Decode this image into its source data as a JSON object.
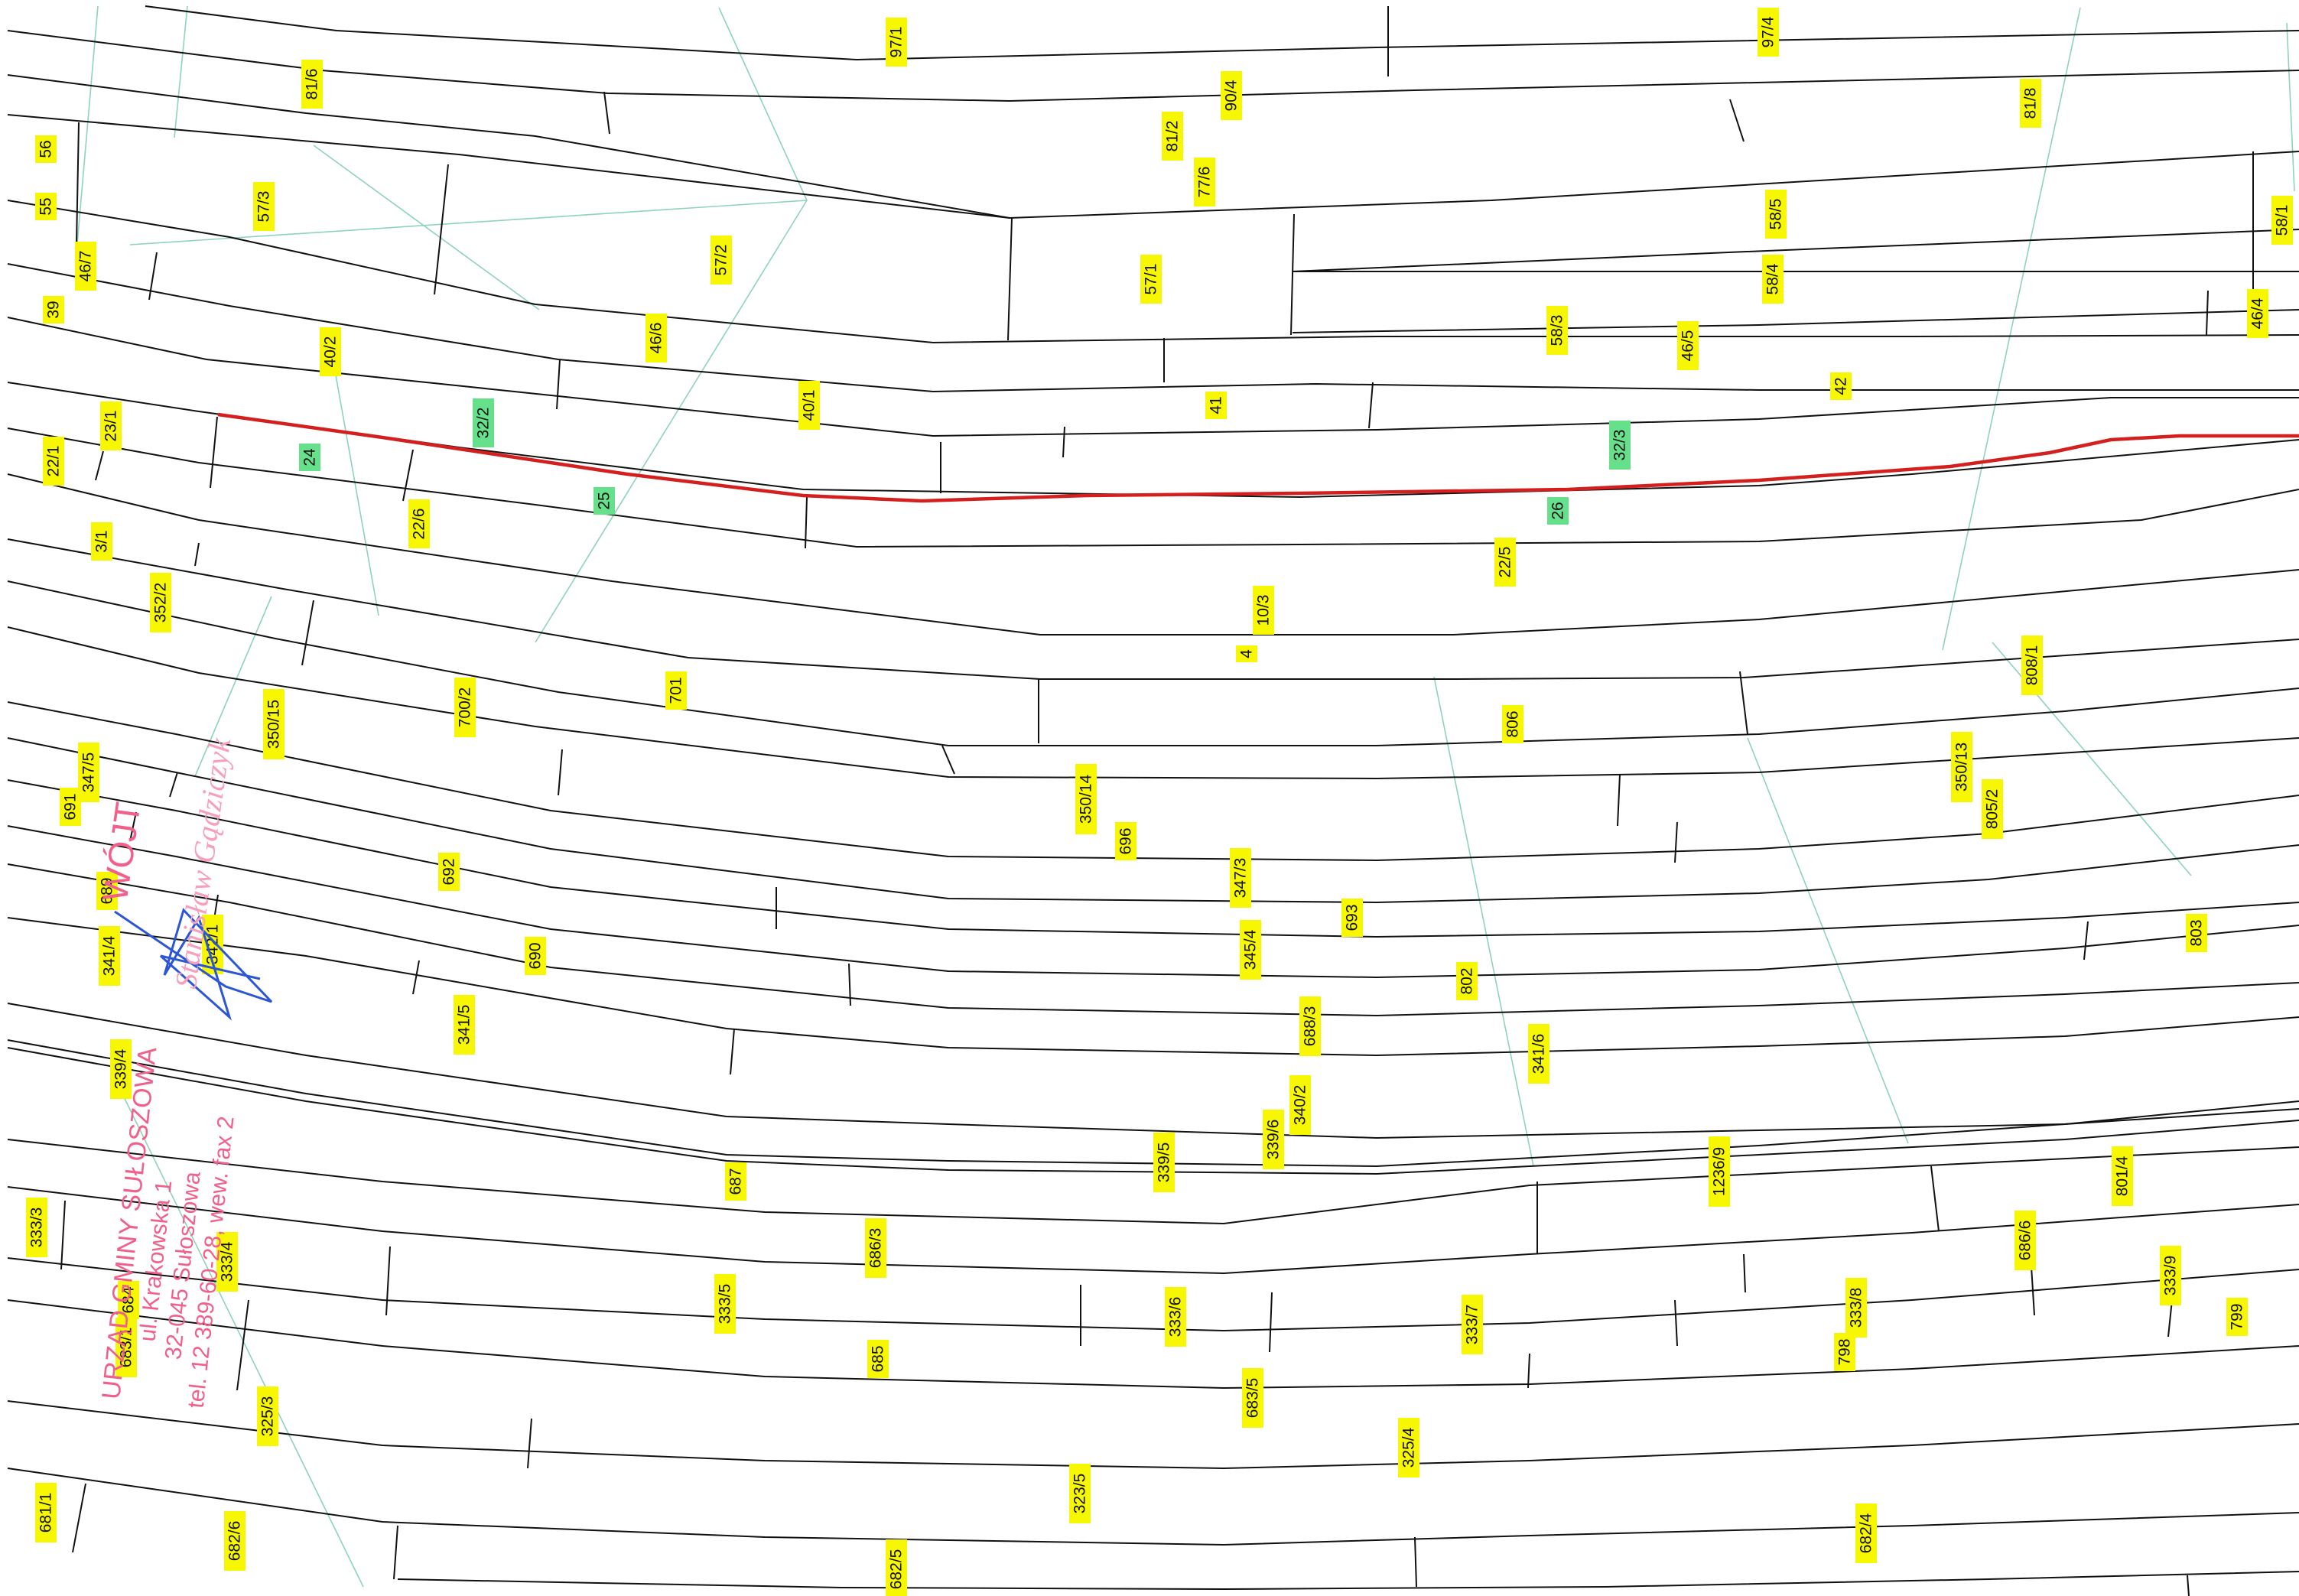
{
  "map": {
    "colors": {
      "background": "#ffffff",
      "boundary": "#111111",
      "label_fill": "#f6f700",
      "highlight_fill": "#66e08a",
      "red_line": "#d41f1f",
      "stamp": "#f0608a",
      "signature": "#2b56d6",
      "thin_lines": "#8fd3b8"
    },
    "parcels": [
      {
        "id": "p1",
        "label": "97/1",
        "highlighted": false
      },
      {
        "id": "p2",
        "label": "97/4",
        "highlighted": false
      },
      {
        "id": "p3",
        "label": "81/6",
        "highlighted": false
      },
      {
        "id": "p4",
        "label": "90/4",
        "highlighted": false
      },
      {
        "id": "p5",
        "label": "81/8",
        "highlighted": false
      },
      {
        "id": "p6",
        "label": "81/2",
        "highlighted": false
      },
      {
        "id": "p7",
        "label": "56",
        "highlighted": false
      },
      {
        "id": "p8",
        "label": "77/6",
        "highlighted": false
      },
      {
        "id": "p9",
        "label": "55",
        "highlighted": false
      },
      {
        "id": "p10",
        "label": "57/3",
        "highlighted": false
      },
      {
        "id": "p11",
        "label": "58/5",
        "highlighted": false
      },
      {
        "id": "p12",
        "label": "58/1",
        "highlighted": false
      },
      {
        "id": "p13",
        "label": "46/7",
        "highlighted": false
      },
      {
        "id": "p14",
        "label": "57/2",
        "highlighted": false
      },
      {
        "id": "p15",
        "label": "57/1",
        "highlighted": false
      },
      {
        "id": "p16",
        "label": "58/4",
        "highlighted": false
      },
      {
        "id": "p17",
        "label": "39",
        "highlighted": false
      },
      {
        "id": "p18",
        "label": "46/6",
        "highlighted": false
      },
      {
        "id": "p19",
        "label": "58/3",
        "highlighted": false
      },
      {
        "id": "p20",
        "label": "46/5",
        "highlighted": false
      },
      {
        "id": "p21",
        "label": "46/4",
        "highlighted": false
      },
      {
        "id": "p22",
        "label": "40/2",
        "highlighted": false
      },
      {
        "id": "p23",
        "label": "40/1",
        "highlighted": false
      },
      {
        "id": "p24",
        "label": "41",
        "highlighted": false
      },
      {
        "id": "p25",
        "label": "42",
        "highlighted": false
      },
      {
        "id": "p26",
        "label": "23/1",
        "highlighted": false
      },
      {
        "id": "p27",
        "label": "32/2",
        "highlighted": true
      },
      {
        "id": "p28",
        "label": "32/3",
        "highlighted": true
      },
      {
        "id": "p29",
        "label": "22/1",
        "highlighted": false
      },
      {
        "id": "p30",
        "label": "24",
        "highlighted": true
      },
      {
        "id": "p31",
        "label": "25",
        "highlighted": true
      },
      {
        "id": "p32",
        "label": "26",
        "highlighted": true
      },
      {
        "id": "p33",
        "label": "22/6",
        "highlighted": false
      },
      {
        "id": "p34",
        "label": "3/1",
        "highlighted": false
      },
      {
        "id": "p35",
        "label": "22/5",
        "highlighted": false
      },
      {
        "id": "p36",
        "label": "352/2",
        "highlighted": false
      },
      {
        "id": "p37",
        "label": "10/3",
        "highlighted": false
      },
      {
        "id": "p38",
        "label": "4",
        "highlighted": false
      },
      {
        "id": "p39",
        "label": "808/1",
        "highlighted": false
      },
      {
        "id": "p40",
        "label": "701",
        "highlighted": false
      },
      {
        "id": "p41",
        "label": "700/2",
        "highlighted": false
      },
      {
        "id": "p42",
        "label": "806",
        "highlighted": false
      },
      {
        "id": "p43",
        "label": "350/15",
        "highlighted": false
      },
      {
        "id": "p44",
        "label": "350/13",
        "highlighted": false
      },
      {
        "id": "p45",
        "label": "347/5",
        "highlighted": false
      },
      {
        "id": "p46",
        "label": "350/14",
        "highlighted": false
      },
      {
        "id": "p47",
        "label": "805/2",
        "highlighted": false
      },
      {
        "id": "p48",
        "label": "691",
        "highlighted": false
      },
      {
        "id": "p49",
        "label": "696",
        "highlighted": false
      },
      {
        "id": "p50",
        "label": "692",
        "highlighted": false
      },
      {
        "id": "p51",
        "label": "347/3",
        "highlighted": false
      },
      {
        "id": "p52",
        "label": "689",
        "highlighted": false
      },
      {
        "id": "p53",
        "label": "693",
        "highlighted": false
      },
      {
        "id": "p54",
        "label": "803",
        "highlighted": false
      },
      {
        "id": "p55",
        "label": "342/1",
        "highlighted": false
      },
      {
        "id": "p56",
        "label": "690",
        "highlighted": false
      },
      {
        "id": "p57",
        "label": "345/4",
        "highlighted": false
      },
      {
        "id": "p58",
        "label": "341/4",
        "highlighted": false
      },
      {
        "id": "p59",
        "label": "802",
        "highlighted": false
      },
      {
        "id": "p60",
        "label": "341/5",
        "highlighted": false
      },
      {
        "id": "p61",
        "label": "688/3",
        "highlighted": false
      },
      {
        "id": "p62",
        "label": "341/6",
        "highlighted": false
      },
      {
        "id": "p63",
        "label": "339/4",
        "highlighted": false
      },
      {
        "id": "p64",
        "label": "340/2",
        "highlighted": false
      },
      {
        "id": "p65",
        "label": "339/6",
        "highlighted": false
      },
      {
        "id": "p66",
        "label": "339/5",
        "highlighted": false
      },
      {
        "id": "p67",
        "label": "687",
        "highlighted": false
      },
      {
        "id": "p68",
        "label": "1236/9",
        "highlighted": false
      },
      {
        "id": "p69",
        "label": "801/4",
        "highlighted": false
      },
      {
        "id": "p70",
        "label": "333/3",
        "highlighted": false
      },
      {
        "id": "p71",
        "label": "686/3",
        "highlighted": false
      },
      {
        "id": "p72",
        "label": "686/6",
        "highlighted": false
      },
      {
        "id": "p73",
        "label": "333/4",
        "highlighted": false
      },
      {
        "id": "p74",
        "label": "333/9",
        "highlighted": false
      },
      {
        "id": "p75",
        "label": "684",
        "highlighted": false
      },
      {
        "id": "p76",
        "label": "333/5",
        "highlighted": false
      },
      {
        "id": "p77",
        "label": "333/6",
        "highlighted": false
      },
      {
        "id": "p78",
        "label": "333/7",
        "highlighted": false
      },
      {
        "id": "p79",
        "label": "333/8",
        "highlighted": false
      },
      {
        "id": "p80",
        "label": "799",
        "highlighted": false
      },
      {
        "id": "p81",
        "label": "683/1",
        "highlighted": false
      },
      {
        "id": "p82",
        "label": "685",
        "highlighted": false
      },
      {
        "id": "p83",
        "label": "798",
        "highlighted": false
      },
      {
        "id": "p84",
        "label": "683/5",
        "highlighted": false
      },
      {
        "id": "p85",
        "label": "325/3",
        "highlighted": false
      },
      {
        "id": "p86",
        "label": "325/4",
        "highlighted": false
      },
      {
        "id": "p87",
        "label": "323/5",
        "highlighted": false
      },
      {
        "id": "p88",
        "label": "681/1",
        "highlighted": false
      },
      {
        "id": "p89",
        "label": "682/6",
        "highlighted": false
      },
      {
        "id": "p90",
        "label": "682/4",
        "highlighted": false
      },
      {
        "id": "p91",
        "label": "682/5",
        "highlighted": false
      }
    ],
    "stamps": {
      "office": {
        "line1": "URZĄD GMINY SUŁOSZOWA",
        "line2": "ul. Krakowska 1",
        "line3": "32-045 Sułoszowa",
        "line4": "tel. 12 389-60-28, wew. fax 2"
      },
      "official": {
        "title": "WÓJT",
        "name": "Stanisław Gądziczyk"
      },
      "signature_icon": "signature-mark"
    }
  }
}
